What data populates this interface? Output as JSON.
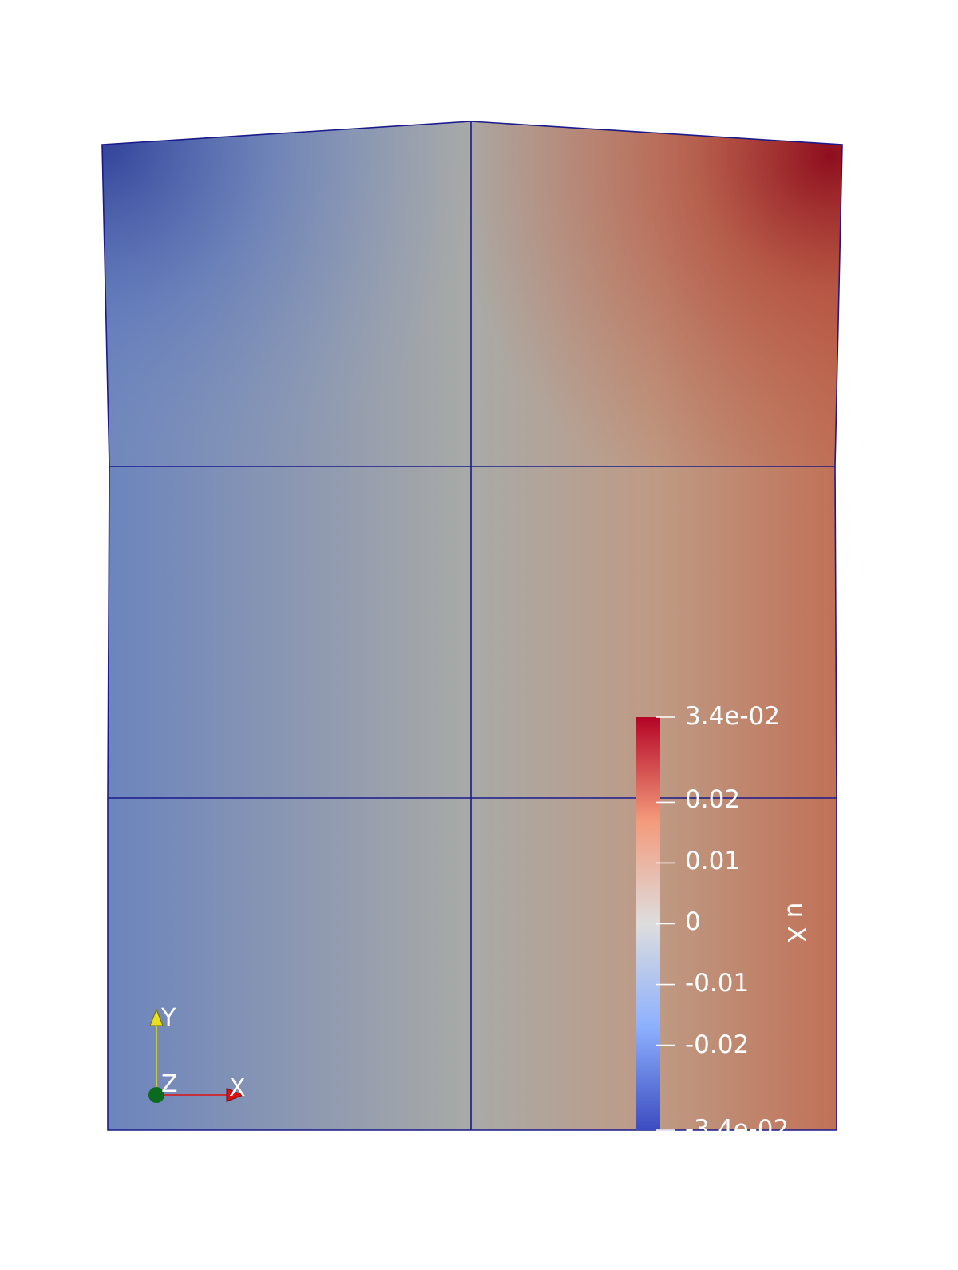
{
  "scalar_bar": {
    "title": "u X",
    "max_label": "3.4e-02",
    "min_label": "-3.4e-02",
    "tick_labels": [
      "0.02",
      "0.01",
      "0",
      "-0.01",
      "-0.02"
    ],
    "range": [
      -0.034,
      0.034
    ],
    "ticks": [
      0.034,
      0.02,
      0.01,
      0,
      -0.01,
      -0.02,
      -0.034
    ],
    "colormap": [
      "#3b4cc0",
      "#8db0fe",
      "#dddddd",
      "#f49a7b",
      "#b40426"
    ]
  },
  "orientation_axes": {
    "x_label": "X",
    "y_label": "Y",
    "z_label": "Z",
    "x_color": "#e01010",
    "y_color": "#e8e020",
    "z_color": "#0a6b1e"
  },
  "mesh": {
    "edge_color": "#1a1a8c",
    "field_colors": {
      "cold": "#33439a",
      "neutral": "#a9aaa7",
      "warm": "#c07055",
      "hot": "#8e0d1e"
    }
  }
}
